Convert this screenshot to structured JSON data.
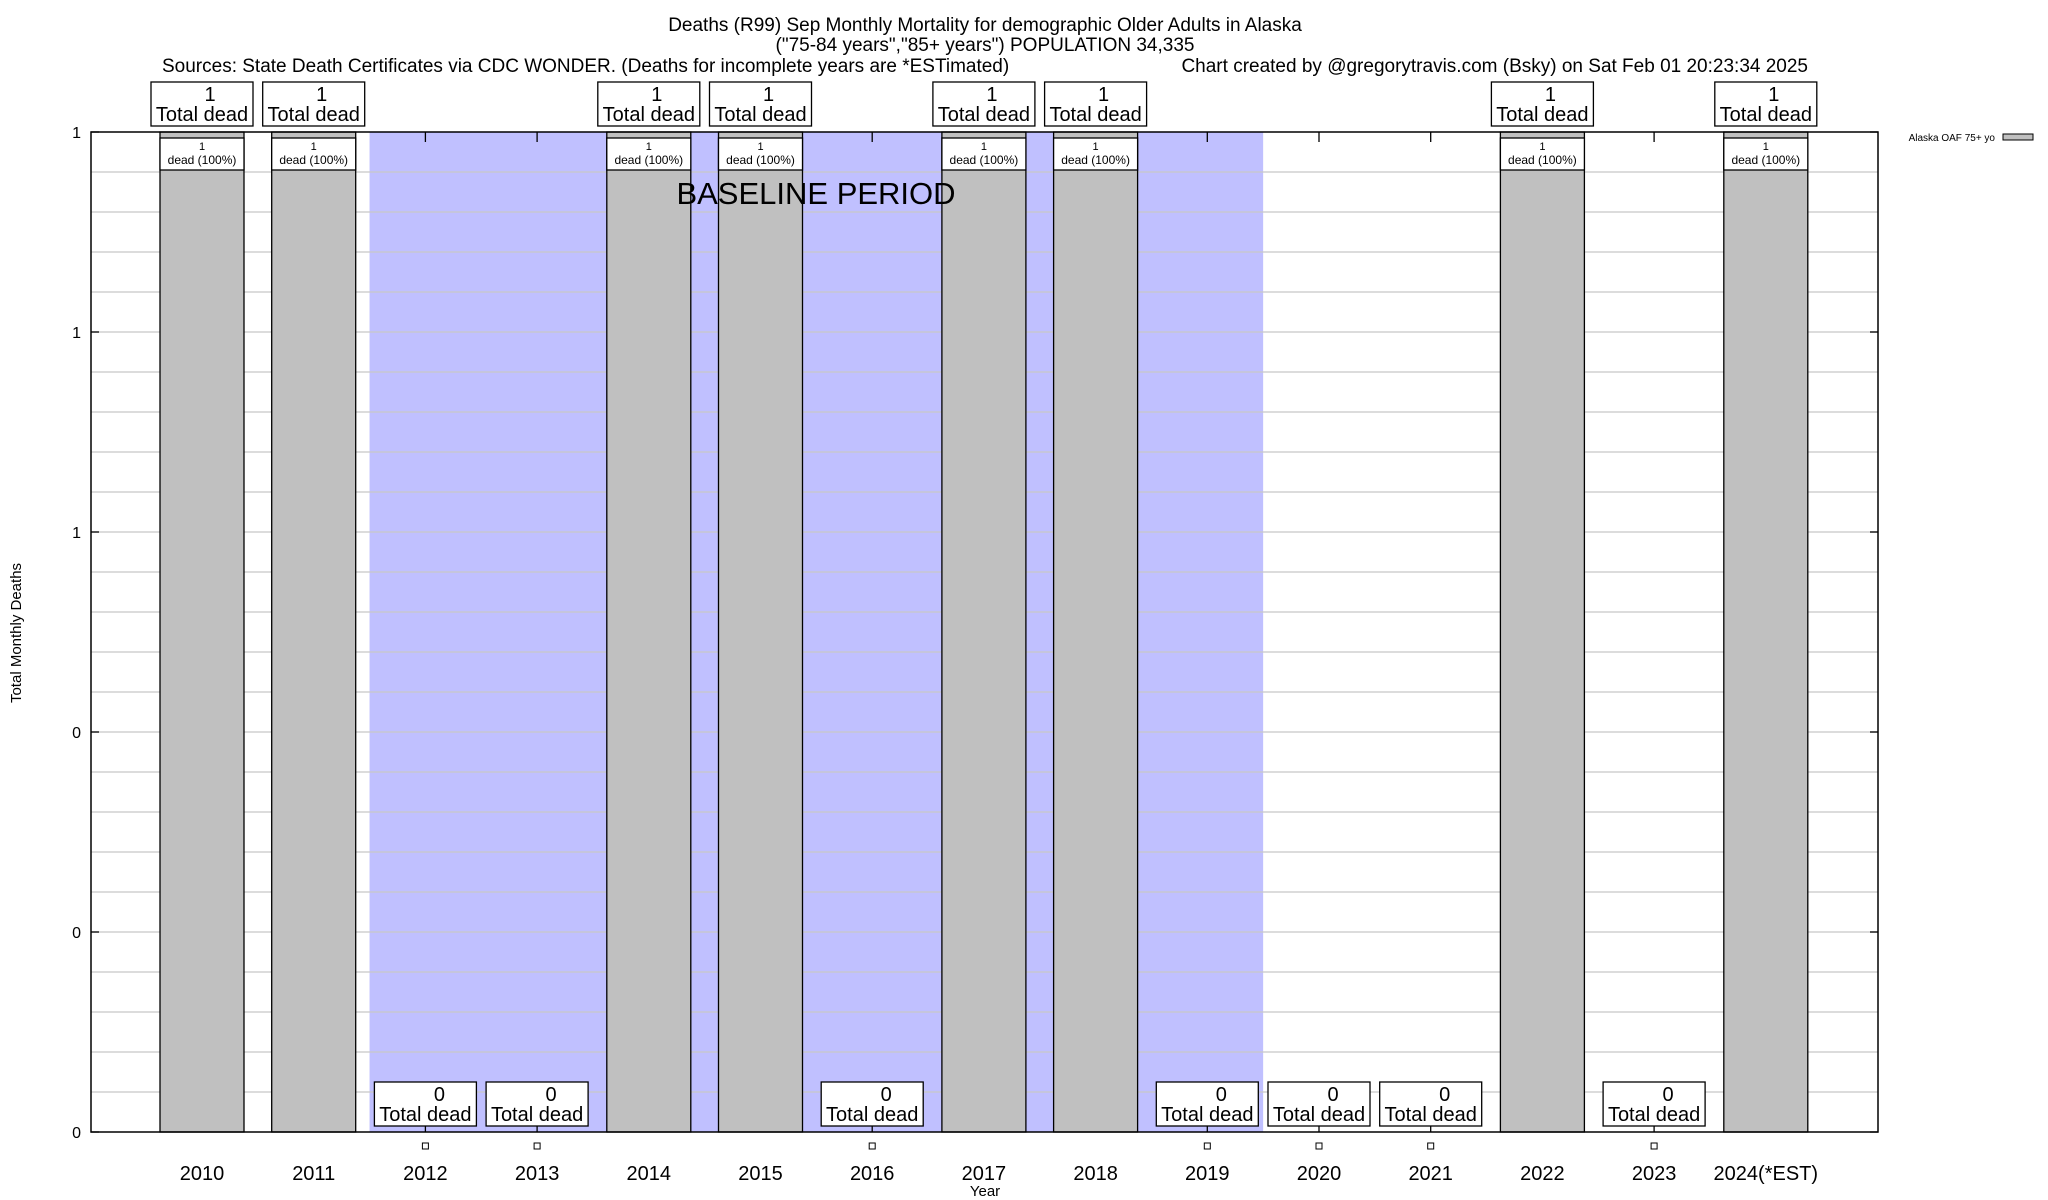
{
  "chart_data": {
    "type": "bar",
    "title_lines": [
      "Deaths (R99) Sep Monthly Mortality for demographic Older Adults in Alaska",
      "(\"75-84 years\",\"85+ years\") POPULATION 34,335"
    ],
    "sources": "Sources: State Death Certificates via CDC WONDER. (Deaths for incomplete years are *ESTimated)",
    "credit": "Chart created by @gregorytravis.com (Bsky) on Sat Feb 01 20:23:34 2025",
    "xlabel": "Year",
    "ylabel": "Total Monthly Deaths",
    "ylim": [
      0,
      1
    ],
    "yticks": [
      0,
      0.2,
      0.4,
      0.6,
      0.8,
      1
    ],
    "ytick_labels": [
      "0",
      "0",
      "0",
      "1",
      "1",
      "1"
    ],
    "grid": true,
    "categories": [
      "2010",
      "2011",
      "2012",
      "2013",
      "2014",
      "2015",
      "2016",
      "2017",
      "2018",
      "2019",
      "2020",
      "2021",
      "2022",
      "2023",
      "2024(*EST)"
    ],
    "series": [
      {
        "name": "Alaska OAF 75+ yo",
        "color": "#c0c0c0",
        "values": [
          1,
          1,
          0,
          0,
          1,
          1,
          0,
          1,
          1,
          0,
          0,
          0,
          1,
          0,
          1
        ]
      }
    ],
    "total_label_suffix": "Total dead",
    "share_label_suffix": "dead (100%)",
    "baseline": {
      "label": "BASELINE PERIOD",
      "from": "2012",
      "to": "2019",
      "color": "#c0c0ff"
    },
    "legend": {
      "placement": "top-right",
      "label": "Alaska OAF 75+ yo"
    }
  }
}
